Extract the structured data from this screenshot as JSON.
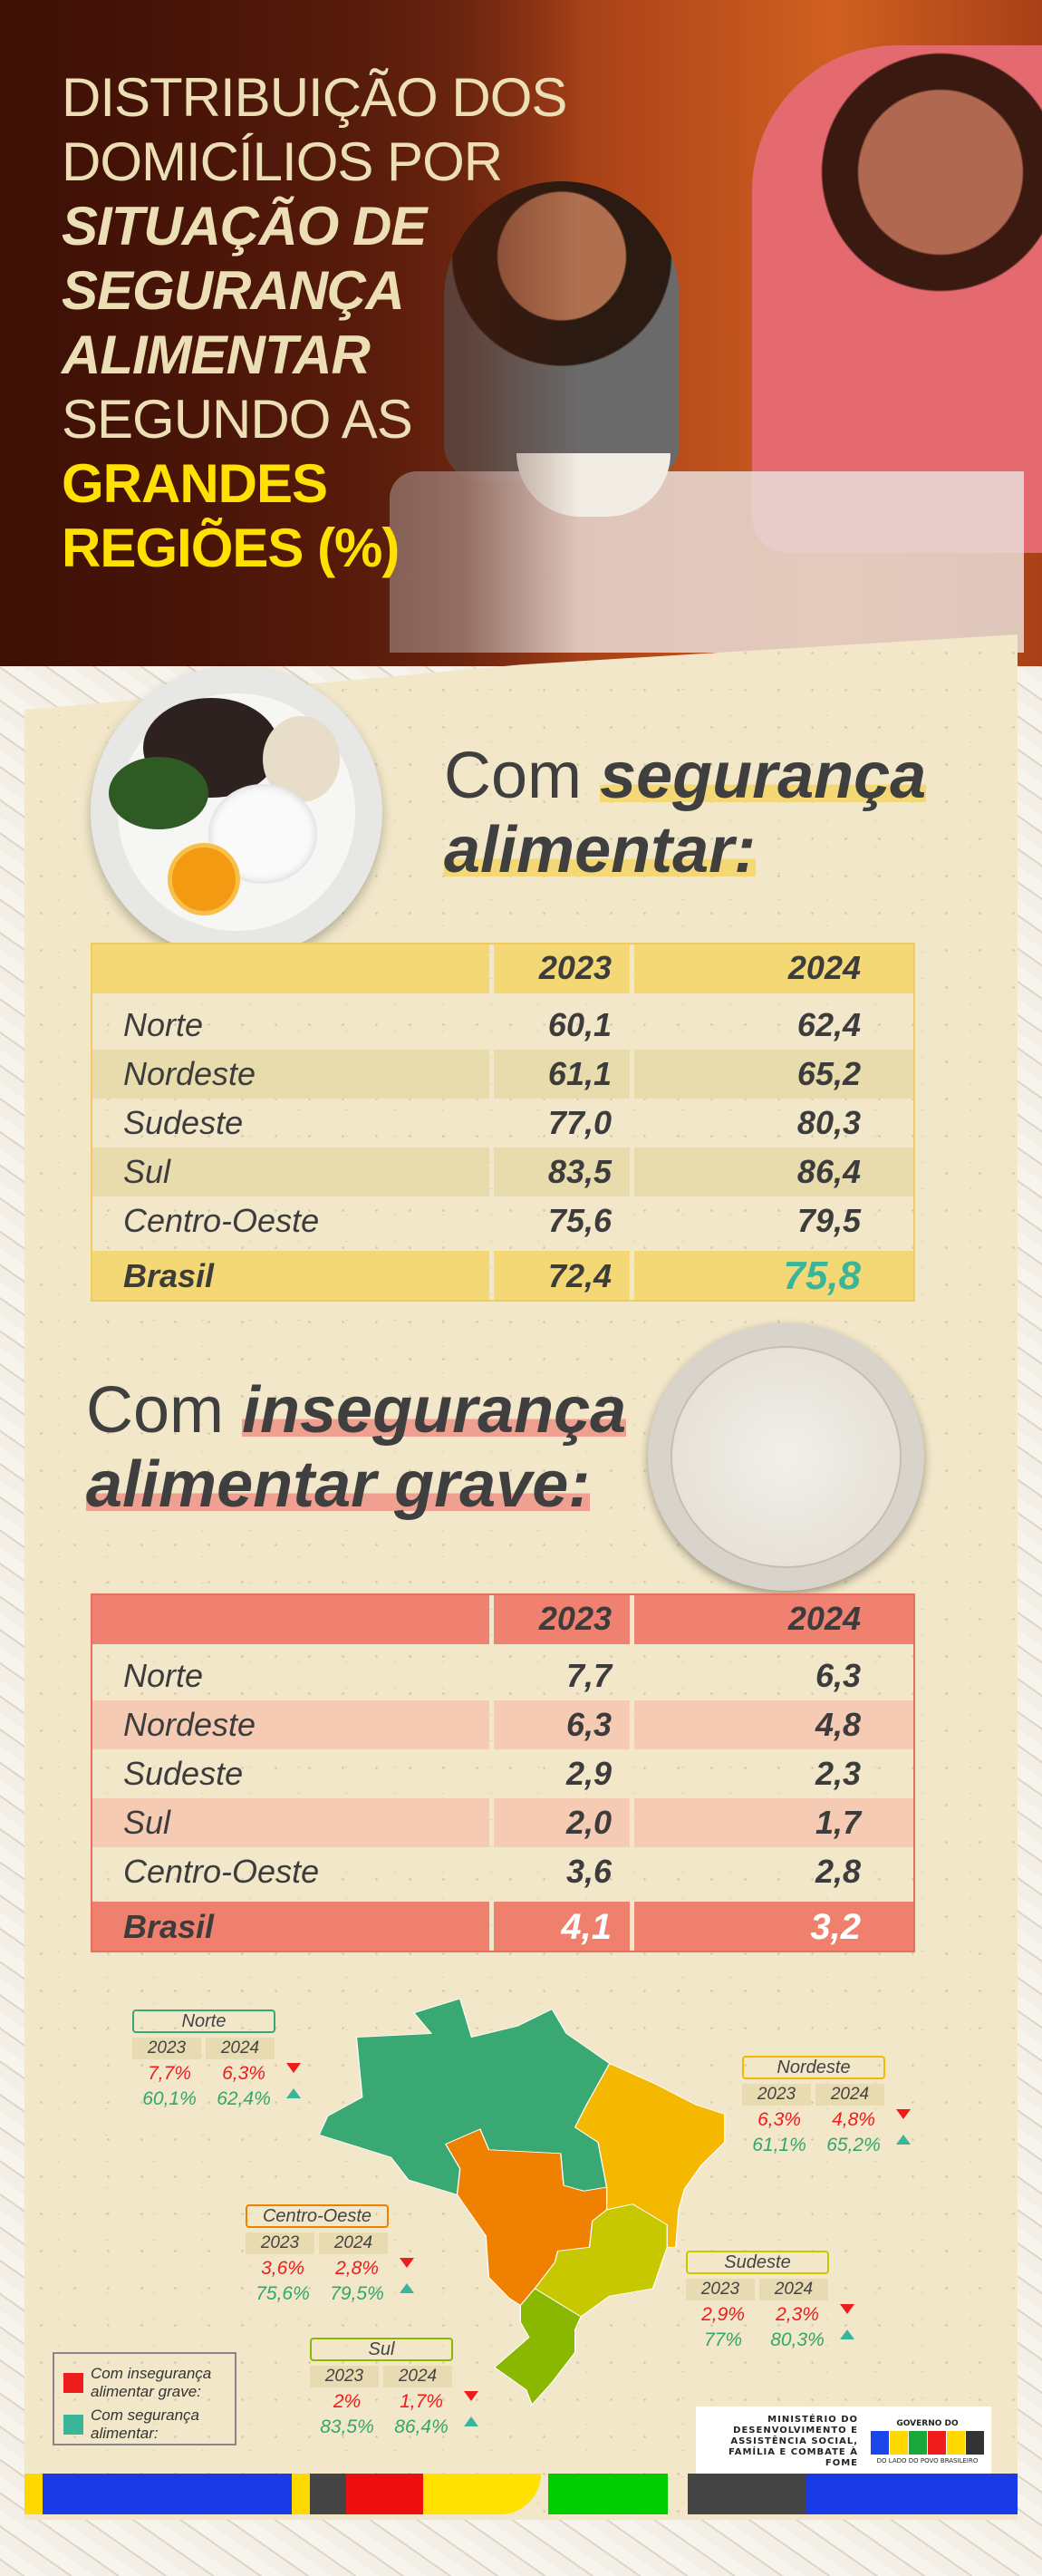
{
  "title": {
    "lines": [
      "DISTRIBUIÇÃO DOS",
      "DOMICÍLIOS POR",
      "SITUAÇÃO DE",
      "SEGURANÇA",
      "ALIMENTAR",
      "SEGUNDO AS",
      "GRANDES",
      "REGIÕES (%)"
    ]
  },
  "food_security": {
    "heading_plain": "Com",
    "heading_bold_1": "segurança",
    "heading_bold_2": "alimentar:",
    "headers": [
      "",
      "2023",
      "2024"
    ],
    "rows": [
      [
        "Norte",
        "60,1",
        "62,4"
      ],
      [
        "Nordeste",
        "61,1",
        "65,2"
      ],
      [
        "Sudeste",
        "77,0",
        "80,3"
      ],
      [
        "Sul",
        "83,5",
        "86,4"
      ],
      [
        "Centro-Oeste",
        "75,6",
        "79,5"
      ]
    ],
    "total": [
      "Brasil",
      "72,4",
      "75,8"
    ]
  },
  "severe_insecurity": {
    "heading_plain": "Com",
    "heading_bold_1": "insegurança",
    "heading_bold_2": "alimentar grave:",
    "headers": [
      "",
      "2023",
      "2024"
    ],
    "rows": [
      [
        "Norte",
        "7,7",
        "6,3"
      ],
      [
        "Nordeste",
        "6,3",
        "4,8"
      ],
      [
        "Sudeste",
        "2,9",
        "2,3"
      ],
      [
        "Sul",
        "2,0",
        "1,7"
      ],
      [
        "Centro-Oeste",
        "3,6",
        "2,8"
      ]
    ],
    "total": [
      "Brasil",
      "4,1",
      "3,2"
    ]
  },
  "map": {
    "years": [
      "2023",
      "2024"
    ],
    "regions": {
      "norte": {
        "name": "Norte",
        "color": "#3aa872",
        "grave": [
          "7,7%",
          "6,3%"
        ],
        "seguranca": [
          "60,1%",
          "62,4%"
        ]
      },
      "nordeste": {
        "name": "Nordeste",
        "color": "#f5b800",
        "grave": [
          "6,3%",
          "4,8%"
        ],
        "seguranca": [
          "61,1%",
          "65,2%"
        ]
      },
      "centro_oeste": {
        "name": "Centro-Oeste",
        "color": "#f08000",
        "grave": [
          "3,6%",
          "2,8%"
        ],
        "seguranca": [
          "75,6%",
          "79,5%"
        ]
      },
      "sudeste": {
        "name": "Sudeste",
        "color": "#c8c800",
        "grave": [
          "2,9%",
          "2,3%"
        ],
        "seguranca": [
          "77%",
          "80,3%"
        ]
      },
      "sul": {
        "name": "Sul",
        "color": "#8ab800",
        "grave": [
          "2%",
          "1,7%"
        ],
        "seguranca": [
          "83,5%",
          "86,4%"
        ]
      }
    },
    "legend": {
      "grave": {
        "label": "Com insegurança alimentar grave:",
        "color": "#ee1c1c"
      },
      "seguranca": {
        "label": "Com segurança alimentar:",
        "color": "#3ab59a"
      }
    }
  },
  "footer": {
    "ministry": "MINISTÉRIO DO DESENVOLVIMENTO E ASSISTÊNCIA SOCIAL, FAMÍLIA E COMBATE À FOME",
    "gov_top": "GOVERNO DO",
    "gov_brand": "BRASIL",
    "gov_tagline": "DO LADO DO POVO BRASILEIRO"
  },
  "colors": {
    "accent_yellow": "#ffe000",
    "teal": "#3ab59a",
    "red": "#ee1c1c",
    "paper": "#f2e7c9"
  }
}
